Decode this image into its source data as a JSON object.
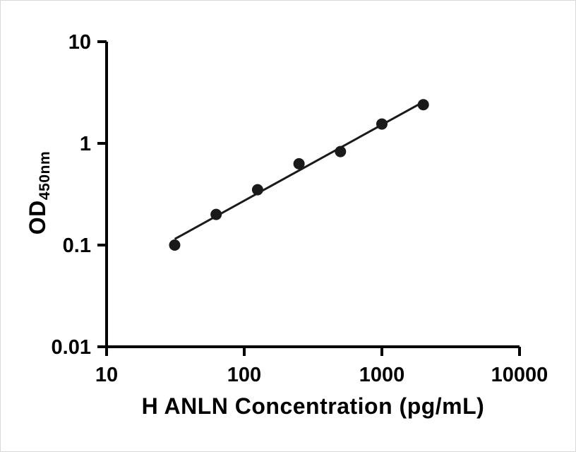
{
  "chart_data": {
    "type": "scatter",
    "title": "",
    "xlabel": "H ANLN Concentration (pg/mL)",
    "ylabel_main": "OD",
    "ylabel_sub": "450nm",
    "xscale": "log",
    "yscale": "log",
    "xlim": [
      10,
      10000
    ],
    "ylim": [
      0.01,
      10
    ],
    "grid": false,
    "legend": "none",
    "x_ticks": [
      {
        "value": 10,
        "label": "10"
      },
      {
        "value": 100,
        "label": "100"
      },
      {
        "value": 1000,
        "label": "1000"
      },
      {
        "value": 10000,
        "label": "10000"
      }
    ],
    "y_ticks": [
      {
        "value": 10,
        "label": "10"
      },
      {
        "value": 1,
        "label": "1"
      },
      {
        "value": 0.1,
        "label": "0.1"
      },
      {
        "value": 0.01,
        "label": "0.01"
      }
    ],
    "points": [
      {
        "x": 31.25,
        "y": 0.1
      },
      {
        "x": 62.5,
        "y": 0.2
      },
      {
        "x": 125,
        "y": 0.35
      },
      {
        "x": 250,
        "y": 0.63
      },
      {
        "x": 500,
        "y": 0.83
      },
      {
        "x": 1000,
        "y": 1.55
      },
      {
        "x": 2000,
        "y": 2.4
      }
    ],
    "fit_line": true,
    "axis_color": "#000000",
    "marker_color": "#1a1a1a",
    "line_color": "#1a1a1a"
  }
}
